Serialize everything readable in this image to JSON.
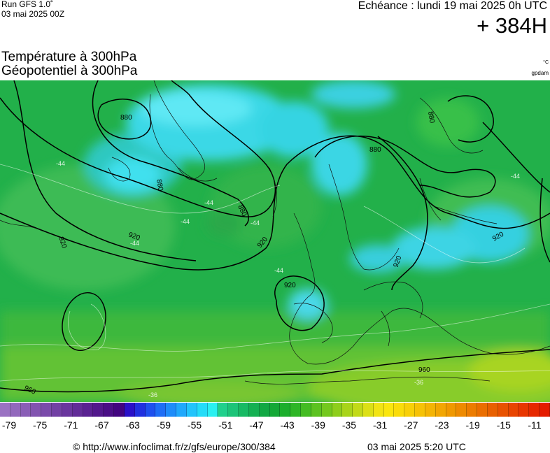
{
  "header": {
    "run_label": "Run GFS 1.0˚",
    "run_date": "03 mai 2025 00Z",
    "valid_label": "Echéance : lundi 19 mai 2025 0h UTC",
    "lead_time": "+ 384H"
  },
  "titles": {
    "line1": "Température à 300hPa",
    "line2": "Géopotentiel à 300hPa",
    "unit_temperature": "°C",
    "unit_geopotential": "gpdam"
  },
  "map": {
    "region": "europe",
    "contour_labels": [
      "880",
      "920",
      "880",
      "880",
      "880",
      "920",
      "920",
      "920",
      "920",
      "880",
      "920",
      "960",
      "960"
    ],
    "isotherm_labels": [
      "-44",
      "-44",
      "-44",
      "-44",
      "-44",
      "-44",
      "-44",
      "-36",
      "-36"
    ]
  },
  "colorbar": {
    "colors": [
      "#9a72c2",
      "#9268bc",
      "#8a5eb6",
      "#8254b0",
      "#7a4aaa",
      "#7240a4",
      "#6a369e",
      "#622c98",
      "#5a2292",
      "#52188c",
      "#4a0e86",
      "#420480",
      "#2a10c8",
      "#2030e0",
      "#1e50ee",
      "#1e6ef6",
      "#1e8cfa",
      "#20a8fc",
      "#22c4fc",
      "#24dcf8",
      "#2af0f0",
      "#20d08c",
      "#1cc478",
      "#18ba64",
      "#14b052",
      "#12a844",
      "#14a836",
      "#1cae2c",
      "#2eb626",
      "#44bc22",
      "#5cc220",
      "#74c81e",
      "#8ece1c",
      "#a8d41a",
      "#c2da18",
      "#dce016",
      "#f2e414",
      "#fae60e",
      "#fadc0a",
      "#f8d008",
      "#f6c206",
      "#f4b404",
      "#f2a602",
      "#f09800",
      "#ee8a00",
      "#ec7c00",
      "#ea6e00",
      "#e86000",
      "#e85200",
      "#e84400",
      "#e83600",
      "#e62800",
      "#e41c00"
    ],
    "tick_labels": [
      "-79",
      "-75",
      "-71",
      "-67",
      "-63",
      "-59",
      "-55",
      "-51",
      "-47",
      "-43",
      "-39",
      "-35",
      "-31",
      "-27",
      "-23",
      "-19",
      "-15",
      "-11"
    ]
  },
  "footer": {
    "url": "© http://www.infoclimat.fr/z/gfs/europe/300/384",
    "timestamp": "03 mai 2025  5:20 UTC"
  }
}
